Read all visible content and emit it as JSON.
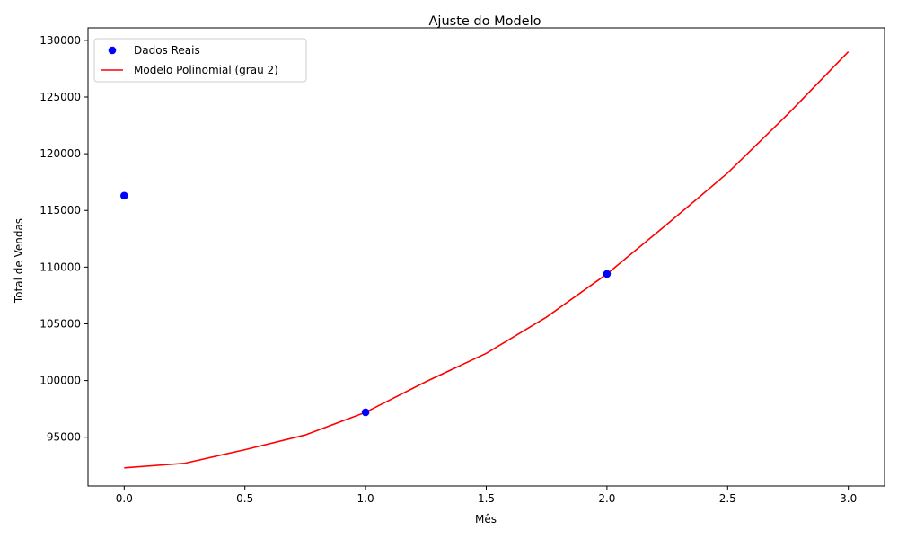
{
  "chart_data": {
    "type": "scatter",
    "title": "Ajuste do Modelo",
    "xlabel": "Mês",
    "ylabel": "Total de Vendas",
    "xlim": [
      -0.15,
      3.15
    ],
    "ylim": [
      90700,
      131100
    ],
    "xticks": [
      0.0,
      0.5,
      1.0,
      1.5,
      2.0,
      2.5,
      3.0
    ],
    "xtick_labels": [
      "0.0",
      "0.5",
      "1.0",
      "1.5",
      "2.0",
      "2.5",
      "3.0"
    ],
    "yticks": [
      95000,
      100000,
      105000,
      110000,
      115000,
      120000,
      125000,
      130000
    ],
    "ytick_labels": [
      "95000",
      "100000",
      "105000",
      "110000",
      "115000",
      "120000",
      "125000",
      "130000"
    ],
    "grid": false,
    "legend_position": "top-left",
    "series": [
      {
        "name": "Dados Reais",
        "kind": "scatter",
        "color": "#0000ff",
        "x": [
          0,
          1,
          2
        ],
        "y": [
          116300,
          97200,
          109400
        ]
      },
      {
        "name": "Modelo Polinomial (grau 2)",
        "kind": "line",
        "color": "#ff0000",
        "x": [
          0.0,
          0.25,
          0.5,
          0.75,
          1.0,
          1.25,
          1.5,
          1.75,
          2.0,
          2.25,
          2.5,
          2.75,
          3.0
        ],
        "y": [
          92300,
          92700,
          93900,
          95200,
          97200,
          99900,
          102400,
          105600,
          109400,
          113800,
          118300,
          123500,
          129000
        ]
      }
    ]
  }
}
